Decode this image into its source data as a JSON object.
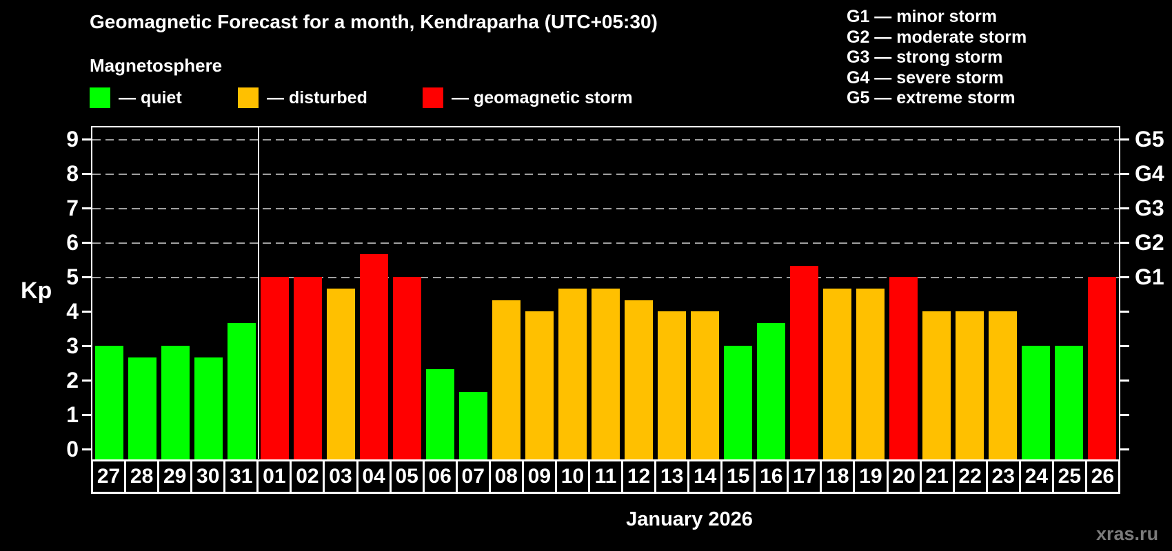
{
  "title": "Geomagnetic Forecast for a month, Kendraparha (UTC+05:30)",
  "watermark": "xras.ru",
  "legend": {
    "heading": "Magnetosphere",
    "items": [
      {
        "label": "— quiet",
        "status": "quiet",
        "color": "#00ff00"
      },
      {
        "label": "— disturbed",
        "status": "disturbed",
        "color": "#ffc000"
      },
      {
        "label": "— geomagnetic storm",
        "status": "storm",
        "color": "#ff0000"
      }
    ]
  },
  "g_scale": [
    "G1 — minor storm",
    "G2 — moderate storm",
    "G3 — strong storm",
    "G4 — severe storm",
    "G5 — extreme storm"
  ],
  "chart_data": {
    "type": "bar",
    "title": "Geomagnetic Forecast for a month, Kendraparha (UTC+05:30)",
    "ylabel": "Kp",
    "xlabel": "January 2026",
    "ylim": [
      0,
      9
    ],
    "yticks": [
      0,
      1,
      2,
      3,
      4,
      5,
      6,
      7,
      8,
      9
    ],
    "grid": "dashed horizontal gridlines at Kp 5,6,7,8,9",
    "legend_position": "top",
    "right_axis": [
      {
        "kp": 5,
        "label": "G1"
      },
      {
        "kp": 6,
        "label": "G2"
      },
      {
        "kp": 7,
        "label": "G3"
      },
      {
        "kp": 8,
        "label": "G4"
      },
      {
        "kp": 9,
        "label": "G5"
      }
    ],
    "categories": [
      "27",
      "28",
      "29",
      "30",
      "31",
      "01",
      "02",
      "03",
      "04",
      "05",
      "06",
      "07",
      "08",
      "09",
      "10",
      "11",
      "12",
      "13",
      "14",
      "15",
      "16",
      "17",
      "18",
      "19",
      "20",
      "21",
      "22",
      "23",
      "24",
      "25",
      "26"
    ],
    "values": [
      3.0,
      2.67,
      3.0,
      2.67,
      3.67,
      5.0,
      5.0,
      4.67,
      5.67,
      5.0,
      2.33,
      1.67,
      4.33,
      4.0,
      4.67,
      4.67,
      4.33,
      4.0,
      4.0,
      3.0,
      3.67,
      5.33,
      4.67,
      4.67,
      5.0,
      4.0,
      4.0,
      4.0,
      3.0,
      3.0,
      5.0
    ],
    "statuses": [
      "quiet",
      "quiet",
      "quiet",
      "quiet",
      "quiet",
      "storm",
      "storm",
      "disturbed",
      "storm",
      "storm",
      "quiet",
      "quiet",
      "disturbed",
      "disturbed",
      "disturbed",
      "disturbed",
      "disturbed",
      "disturbed",
      "disturbed",
      "quiet",
      "quiet",
      "storm",
      "disturbed",
      "disturbed",
      "storm",
      "disturbed",
      "disturbed",
      "disturbed",
      "quiet",
      "quiet",
      "storm"
    ],
    "status_colors": {
      "quiet": "#00ff00",
      "disturbed": "#ffc000",
      "storm": "#ff0000"
    },
    "separator_before_index": 5
  }
}
